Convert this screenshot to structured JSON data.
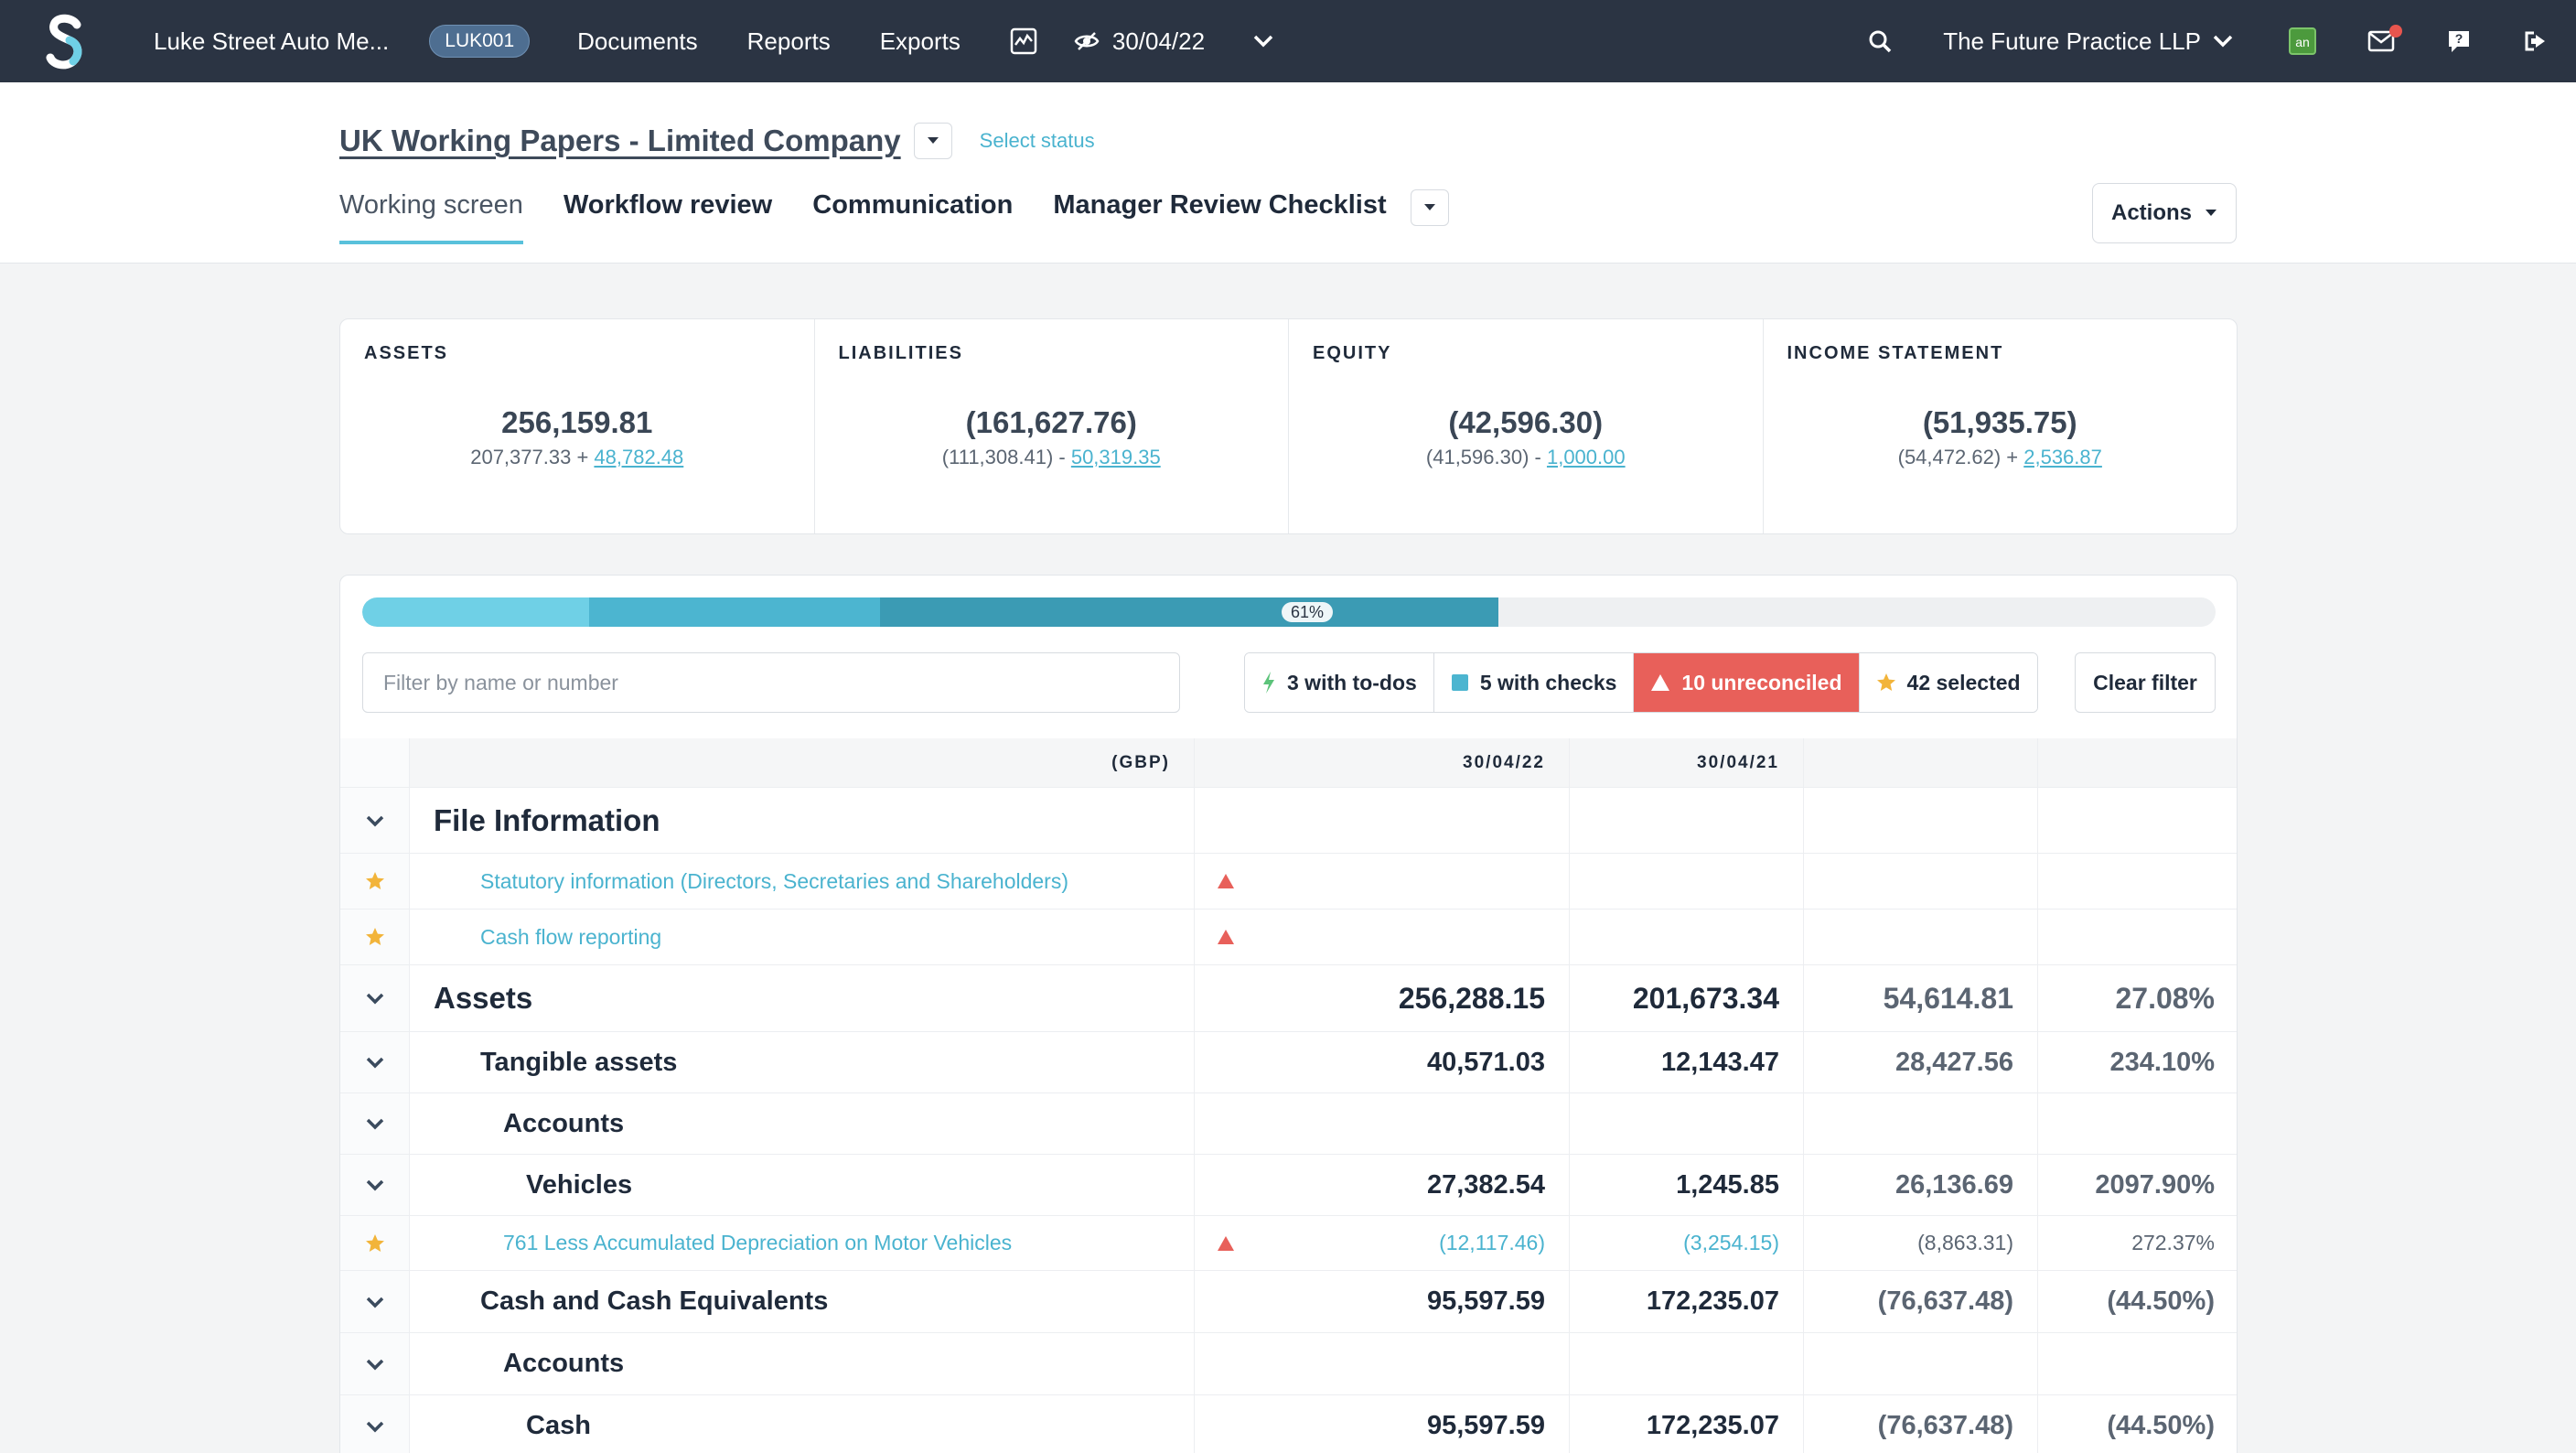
{
  "topnav": {
    "client": "Luke Street Auto Me...",
    "client_code": "LUK001",
    "documents": "Documents",
    "reports": "Reports",
    "exports": "Exports",
    "period_date": "30/04/22",
    "practice": "The Future Practice LLP",
    "app_badge": "an"
  },
  "header": {
    "title": "UK Working Papers - Limited Company",
    "select_status": "Select status",
    "tabs": [
      "Working screen",
      "Workflow review",
      "Communication",
      "Manager Review Checklist"
    ],
    "actions": "Actions"
  },
  "summary": [
    {
      "label": "ASSETS",
      "total": "256,159.81",
      "base": "207,377.33 + ",
      "delta": "48,782.48"
    },
    {
      "label": "LIABILITIES",
      "total": "(161,627.76)",
      "base": "(111,308.41) - ",
      "delta": "50,319.35"
    },
    {
      "label": "EQUITY",
      "total": "(42,596.30)",
      "base": "(41,596.30) - ",
      "delta": "1,000.00"
    },
    {
      "label": "INCOME STATEMENT",
      "total": "(51,935.75)",
      "base": "(54,472.62) + ",
      "delta": "2,536.87"
    }
  ],
  "progress": {
    "label": "61%",
    "value_percent": 61
  },
  "filter": {
    "placeholder": "Filter by name or number",
    "todos": "3 with to-dos",
    "checks": "5 with checks",
    "unreconciled": "10 unreconciled",
    "selected": "42 selected",
    "clear": "Clear filter"
  },
  "table": {
    "headers": {
      "currency": "(GBP)",
      "current": "30/04/22",
      "prior": "30/04/21"
    },
    "rows": [
      {
        "label": "File Information"
      },
      {
        "label": "Statutory information (Directors, Secretaries and Shareholders)"
      },
      {
        "label": "Cash flow reporting"
      },
      {
        "label": "Assets",
        "current": "256,288.15",
        "prior": "201,673.34",
        "diff": "54,614.81",
        "pct": "27.08%"
      },
      {
        "label": "Tangible assets",
        "current": "40,571.03",
        "prior": "12,143.47",
        "diff": "28,427.56",
        "pct": "234.10%"
      },
      {
        "label": "Accounts"
      },
      {
        "label": "Vehicles",
        "current": "27,382.54",
        "prior": "1,245.85",
        "diff": "26,136.69",
        "pct": "2097.90%"
      },
      {
        "label": "761 Less Accumulated Depreciation on Motor Vehicles",
        "current": "(12,117.46)",
        "prior": "(3,254.15)",
        "diff": "(8,863.31)",
        "pct": "272.37%"
      },
      {
        "label": "Cash and Cash Equivalents",
        "current": "95,597.59",
        "prior": "172,235.07",
        "diff": "(76,637.48)",
        "pct": "(44.50%)"
      },
      {
        "label": "Accounts"
      },
      {
        "label": "Cash",
        "current": "95,597.59",
        "prior": "172,235.07",
        "diff": "(76,637.48)",
        "pct": "(44.50%)"
      }
    ]
  },
  "colors": {
    "nav_bg": "#2b3443",
    "accent": "#4ab3cf",
    "alert": "#e8605a",
    "star": "#f2b43a"
  }
}
